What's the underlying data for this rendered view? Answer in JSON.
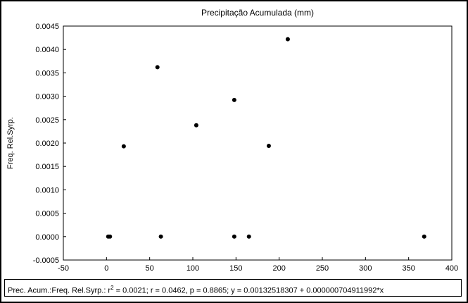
{
  "chart_data": {
    "type": "scatter",
    "title": "Precipitação Acumulada (mm)",
    "xlabel": "",
    "ylabel": "Freq. Rel.Syrp.",
    "xlim": [
      -50,
      400
    ],
    "ylim": [
      -0.0005,
      0.0045
    ],
    "x_ticks": [
      -50,
      0,
      50,
      100,
      150,
      200,
      250,
      300,
      350,
      400
    ],
    "x_tick_labels": [
      "-50",
      "0",
      "50",
      "100",
      "150",
      "200",
      "250",
      "300",
      "350",
      "400"
    ],
    "y_ticks": [
      -0.0005,
      0,
      0.0005,
      0.001,
      0.0015,
      0.002,
      0.0025,
      0.003,
      0.0035,
      0.004,
      0.0045
    ],
    "y_tick_labels": [
      "-0.0005",
      "0.0000",
      "0.0005",
      "0.0010",
      "0.0015",
      "0.0020",
      "0.0025",
      "0.0030",
      "0.0035",
      "0.0040",
      "0.0045"
    ],
    "grid": false,
    "points": [
      {
        "x": 2,
        "y": 0.0
      },
      {
        "x": 4,
        "y": 0.0
      },
      {
        "x": 20,
        "y": 0.00193
      },
      {
        "x": 59,
        "y": 0.00362
      },
      {
        "x": 63,
        "y": 0.0
      },
      {
        "x": 104,
        "y": 0.00238
      },
      {
        "x": 148,
        "y": 0.00292
      },
      {
        "x": 148,
        "y": 0.0
      },
      {
        "x": 165,
        "y": 0.0
      },
      {
        "x": 188,
        "y": 0.00194
      },
      {
        "x": 210,
        "y": 0.00422
      },
      {
        "x": 368,
        "y": 0.0
      }
    ],
    "marker_color": "#000000"
  },
  "footer": {
    "regression_prefix": "Prec. Acum.:Freq. Rel.Syrp.:  r",
    "regression_sup": "2",
    "regression_rest": " = 0.0021;  r = 0.0462, p = 0.8865;  y = 0.00132518307 + 0.000000704911992*x"
  }
}
